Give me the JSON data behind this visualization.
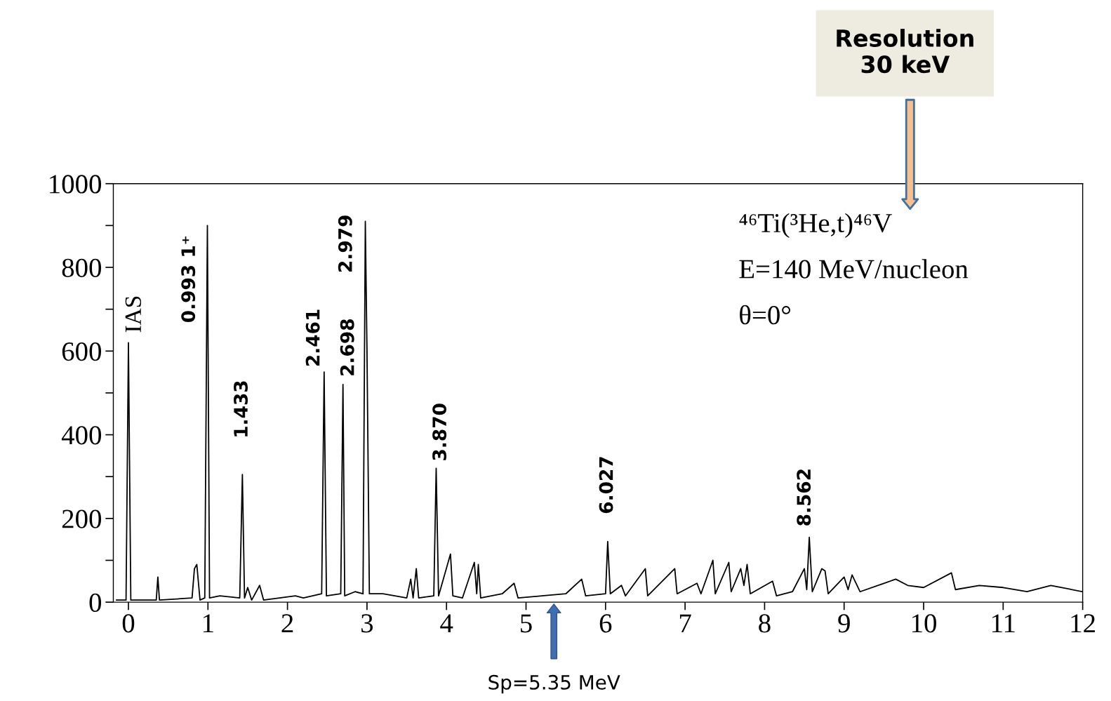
{
  "chart_data": {
    "type": "line",
    "color": "#000000",
    "x": [
      -0.15,
      -0.03,
      0,
      0.03,
      0.35,
      0.37,
      0.39,
      0.8,
      0.83,
      0.86,
      0.9,
      0.96,
      0.993,
      1.02,
      1.15,
      1.4,
      1.433,
      1.46,
      1.5,
      1.55,
      1.65,
      1.7,
      2.1,
      2.2,
      2.43,
      2.461,
      2.49,
      2.67,
      2.698,
      2.72,
      2.85,
      2.95,
      2.979,
      3.0,
      3.03,
      3.2,
      3.5,
      3.55,
      3.58,
      3.62,
      3.65,
      3.84,
      3.87,
      3.9,
      4.05,
      4.08,
      4.2,
      4.35,
      4.38,
      4.4,
      4.43,
      4.7,
      4.85,
      4.9,
      5.2,
      5.5,
      5.7,
      5.75,
      6.0,
      6.027,
      6.06,
      6.2,
      6.25,
      6.5,
      6.53,
      6.87,
      6.9,
      7.15,
      7.2,
      7.35,
      7.38,
      7.55,
      7.58,
      7.7,
      7.74,
      7.78,
      7.82,
      8.1,
      8.15,
      8.35,
      8.5,
      8.53,
      8.562,
      8.6,
      8.72,
      8.76,
      8.8,
      9.0,
      9.05,
      9.1,
      9.2,
      9.5,
      9.65,
      9.8,
      10.0,
      10.35,
      10.4,
      10.7,
      11.0,
      11.3,
      11.6,
      12.0
    ],
    "values": [
      5,
      5,
      620,
      5,
      5,
      60,
      5,
      10,
      80,
      90,
      5,
      10,
      900,
      10,
      15,
      10,
      305,
      10,
      35,
      5,
      40,
      5,
      15,
      10,
      20,
      550,
      15,
      20,
      520,
      15,
      25,
      20,
      910,
      600,
      20,
      20,
      10,
      55,
      10,
      80,
      10,
      15,
      320,
      15,
      115,
      15,
      10,
      95,
      20,
      90,
      10,
      20,
      45,
      10,
      15,
      20,
      55,
      15,
      20,
      145,
      20,
      40,
      15,
      80,
      15,
      80,
      20,
      45,
      20,
      100,
      20,
      95,
      25,
      80,
      40,
      90,
      20,
      50,
      15,
      25,
      80,
      30,
      155,
      25,
      80,
      75,
      20,
      60,
      30,
      65,
      25,
      45,
      55,
      40,
      35,
      70,
      30,
      40,
      35,
      25,
      40,
      25
    ],
    "xlim": [
      -0.19,
      12
    ],
    "ylim": [
      0,
      1000
    ],
    "xticks": [
      0,
      1,
      2,
      3,
      4,
      5,
      6,
      7,
      8,
      9,
      10,
      11,
      12
    ],
    "yticks": [
      0,
      {
        "value": 100,
        "label": null
      },
      200,
      {
        "value": 300,
        "label": null
      },
      400,
      {
        "value": 500,
        "label": null
      },
      600,
      {
        "value": 700,
        "label": null
      },
      800,
      {
        "value": 900,
        "label": null
      },
      1000
    ],
    "grid": false,
    "marker": "none",
    "line_style": "solid",
    "annotations": [
      {
        "text": "IAS",
        "x": 0,
        "y": 620
      },
      {
        "text": "0.993 1⁺",
        "x": 0.993,
        "y": 900
      },
      {
        "text": "1.433",
        "x": 1.433,
        "y": 305
      },
      {
        "text": "2.461",
        "x": 2.461,
        "y": 550
      },
      {
        "text": "2.698",
        "x": 2.698,
        "y": 520
      },
      {
        "text": "2.979",
        "x": 2.979,
        "y": 910
      },
      {
        "text": "3.870",
        "x": 3.87,
        "y": 320
      },
      {
        "text": "6.027",
        "x": 6.027,
        "y": 145
      },
      {
        "text": "8.562",
        "x": 8.562,
        "y": 155
      },
      "⁴⁶Ti(³He,t)⁴⁶V",
      "E=140 MeV/nucleon",
      "θ=0°",
      "Sp=5.35 MeV",
      "Resolution\n30 keV"
    ]
  }
}
